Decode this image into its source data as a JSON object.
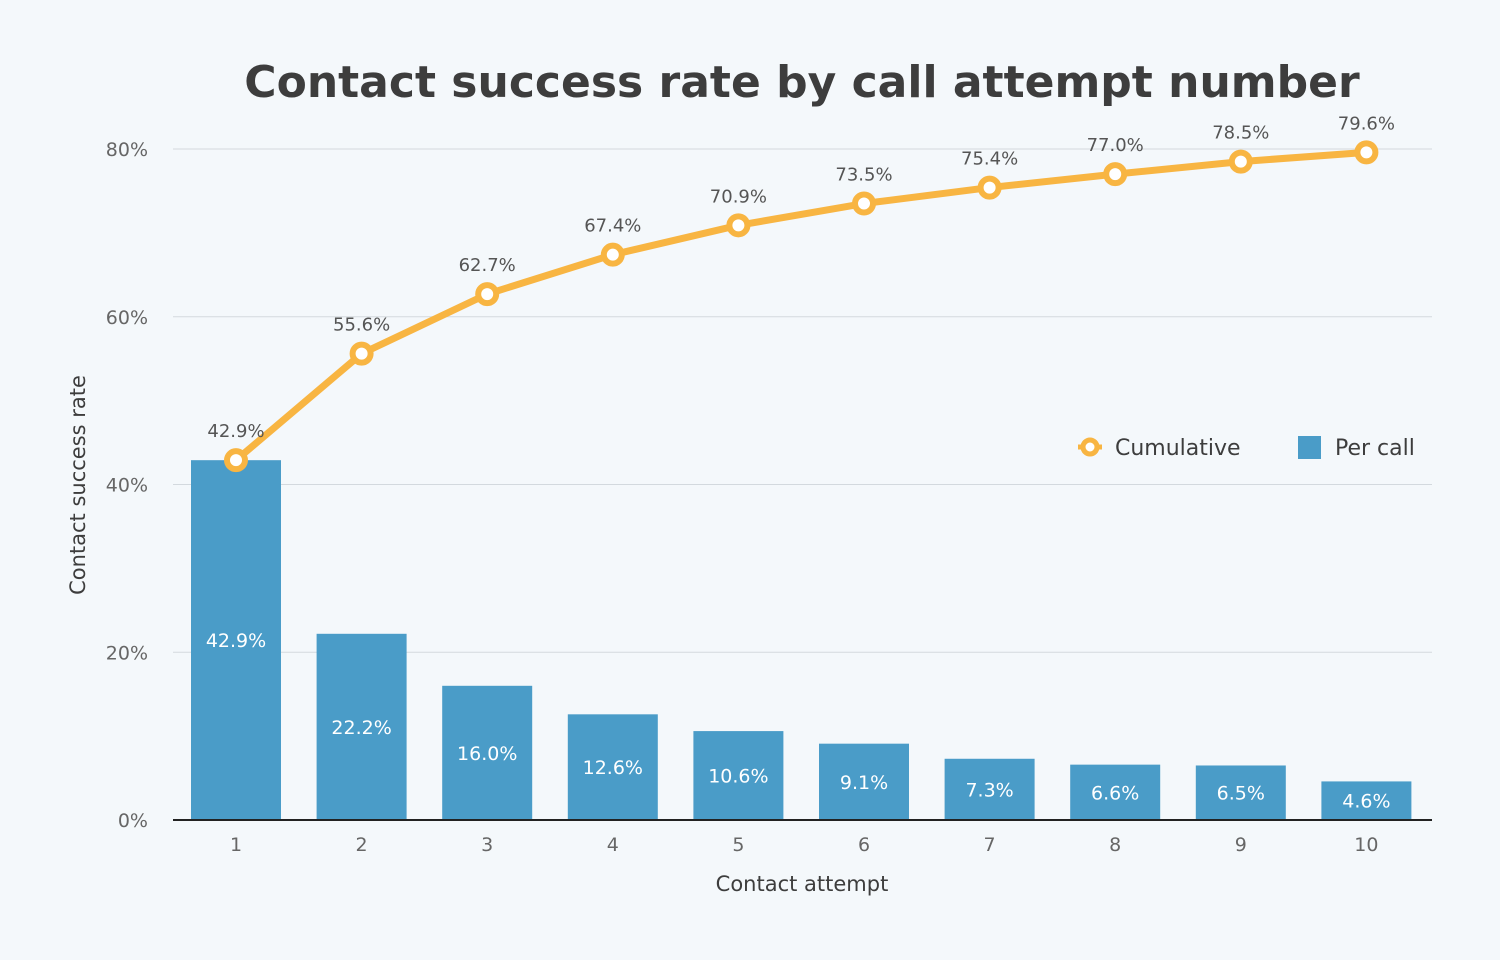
{
  "chart_data": {
    "type": "bar+line",
    "title": "Contact success rate by call attempt number",
    "xlabel": "Contact attempt",
    "ylabel": "Contact success rate",
    "categories": [
      "1",
      "2",
      "3",
      "4",
      "5",
      "6",
      "7",
      "8",
      "9",
      "10"
    ],
    "ylim": [
      0,
      80
    ],
    "yticks": [
      0,
      20,
      40,
      60,
      80
    ],
    "ytick_labels": [
      "0%",
      "20%",
      "40%",
      "60%",
      "80%"
    ],
    "grid": true,
    "legend_placement": "right",
    "series": [
      {
        "name": "Cumulative",
        "type": "line",
        "color": "#f8b542",
        "values": [
          42.9,
          55.6,
          62.7,
          67.4,
          70.9,
          73.5,
          75.4,
          77.0,
          78.5,
          79.6
        ],
        "labels": [
          "42.9%",
          "55.6%",
          "62.7%",
          "67.4%",
          "70.9%",
          "73.5%",
          "75.4%",
          "77.0%",
          "78.5%",
          "79.6%"
        ]
      },
      {
        "name": "Per call",
        "type": "bar",
        "color": "#4a9cc8",
        "values": [
          42.9,
          22.2,
          16.0,
          12.6,
          10.6,
          9.1,
          7.3,
          6.6,
          6.5,
          4.6
        ],
        "labels": [
          "42.9%",
          "22.2%",
          "16.0%",
          "12.6%",
          "10.6%",
          "9.1%",
          "7.3%",
          "6.6%",
          "6.5%",
          "4.6%"
        ]
      }
    ]
  }
}
